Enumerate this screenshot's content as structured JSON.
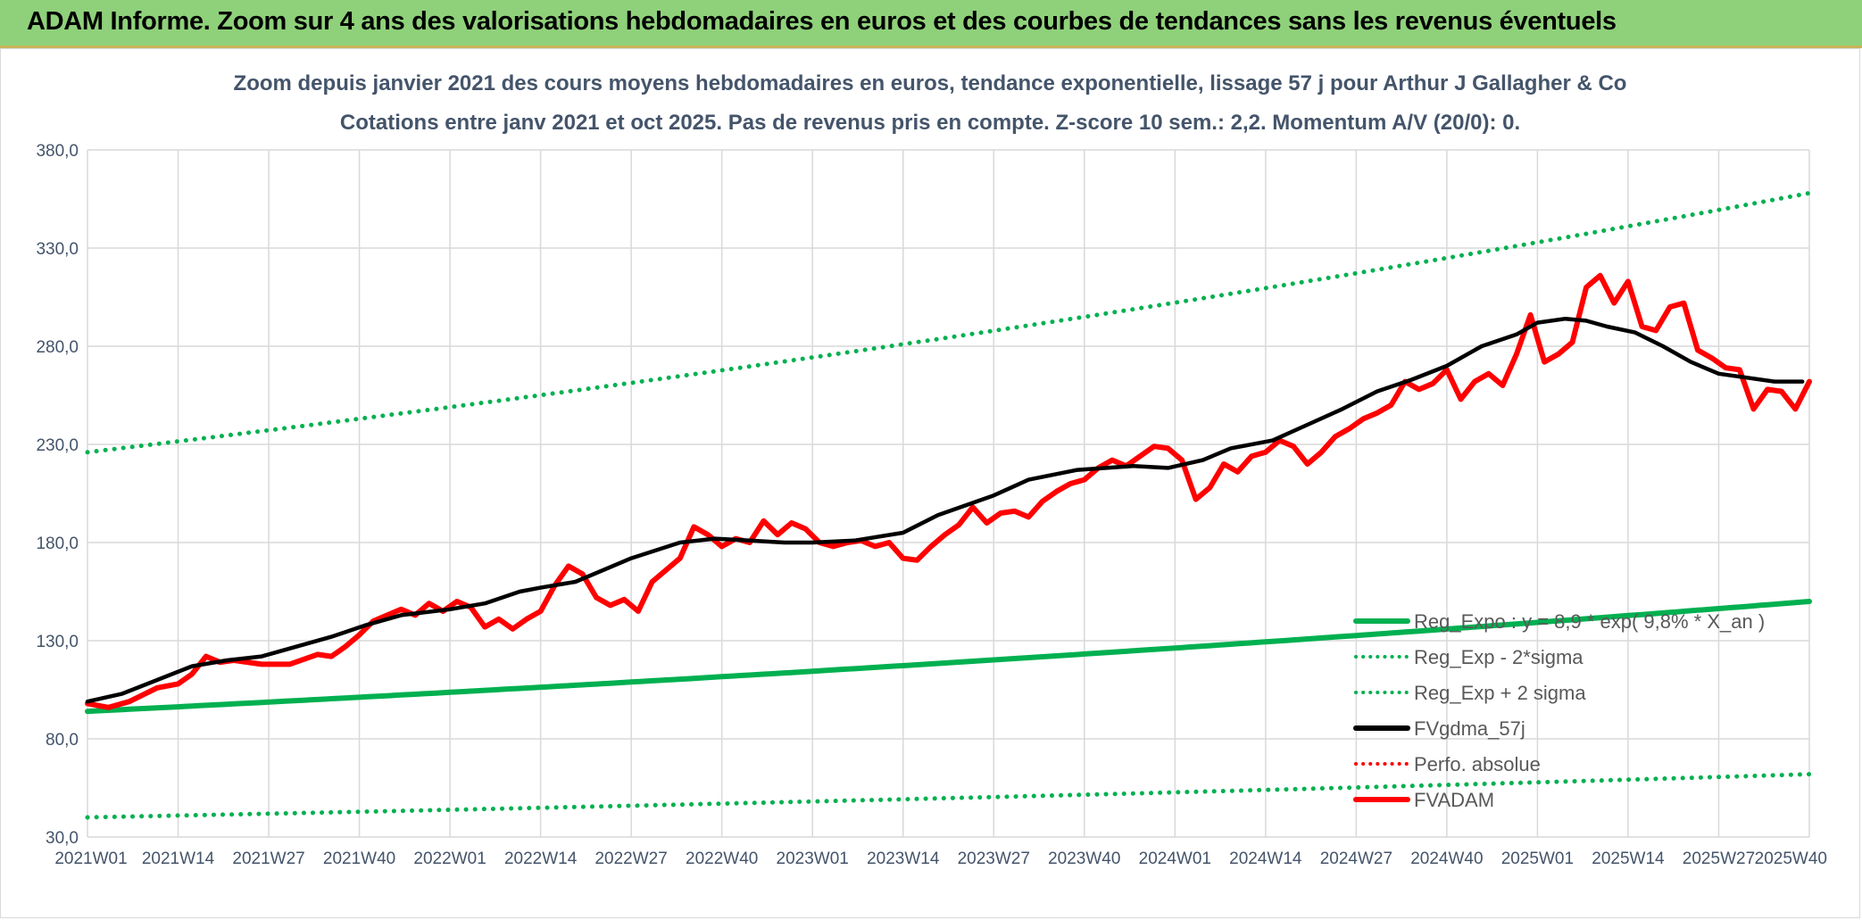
{
  "banner": {
    "title": "ADAM Informe. Zoom sur 4 ans des valorisations hebdomadaires en euros et des courbes de tendances sans les revenus éventuels"
  },
  "colors": {
    "banner_bg": "#8fd17a",
    "grid": "#d9d9d9",
    "reg_expo": "#00b050",
    "fvgdma": "#000000",
    "perfo": "#ff0000",
    "fvadam": "#ff0000",
    "title_text": "#44546a",
    "axis_text": "#44546a"
  },
  "chart_data": {
    "type": "line",
    "title": "Zoom depuis janvier 2021 des cours moyens hebdomadaires en euros, tendance exponentielle, lissage 57 j pour Arthur J Gallagher & Co",
    "subtitle": "Cotations entre janv 2021 et oct 2025. Pas de revenus pris en compte. Z-score 10 sem.: 2,2. Momentum A/V (20/0): 0.",
    "xlabel": "",
    "ylabel": "",
    "ylim": [
      30,
      380
    ],
    "yticks": [
      "30,0",
      "80,0",
      "130,0",
      "180,0",
      "230,0",
      "280,0",
      "330,0",
      "380,0"
    ],
    "xticks": [
      "2021W01",
      "2021W14",
      "2021W27",
      "2021W40",
      "2022W01",
      "2022W14",
      "2022W27",
      "2022W40",
      "2023W01",
      "2023W14",
      "2023W27",
      "2023W40",
      "2024W01",
      "2024W14",
      "2024W27",
      "2024W40",
      "2025W01",
      "2025W14",
      "2025W27",
      "2025W40"
    ],
    "x_range_weeks": [
      0,
      247
    ],
    "grid": true,
    "legend_position": "bottom-right",
    "legend": [
      {
        "name": "Reg_Expo : y = 8,9 * exp( 9,8% * X_an )",
        "style": "solid",
        "color": "#00b050"
      },
      {
        "name": "Reg_Exp - 2*sigma",
        "style": "dotted",
        "color": "#00b050"
      },
      {
        "name": "Reg_Exp + 2 sigma",
        "style": "dotted",
        "color": "#00b050"
      },
      {
        "name": "FVgdma_57j",
        "style": "solid",
        "color": "#000000"
      },
      {
        "name": "Perfo. absolue",
        "style": "dotted",
        "color": "#ff0000"
      },
      {
        "name": "FVADAM",
        "style": "solid",
        "color": "#ff0000"
      }
    ],
    "series": [
      {
        "name": "Reg_Expo",
        "x": [
          0,
          247
        ],
        "y": [
          94,
          150
        ],
        "curve": "exponential"
      },
      {
        "name": "Reg_Exp - 2*sigma",
        "x": [
          0,
          247
        ],
        "y": [
          40,
          62
        ],
        "curve": "exponential"
      },
      {
        "name": "Reg_Exp + 2 sigma",
        "x": [
          0,
          247
        ],
        "y": [
          226,
          358
        ],
        "curve": "exponential"
      },
      {
        "name": "FVgdma_57j",
        "x": [
          0,
          5,
          10,
          15,
          20,
          25,
          30,
          35,
          40,
          45,
          52,
          57,
          62,
          65,
          70,
          78,
          85,
          90,
          95,
          100,
          104,
          110,
          117,
          122,
          130,
          135,
          142,
          150,
          155,
          160,
          164,
          170,
          175,
          180,
          185,
          190,
          195,
          200,
          205,
          208,
          212,
          215,
          218,
          222,
          226,
          230,
          234,
          238,
          242,
          246
        ],
        "y": [
          99,
          103,
          110,
          117,
          120,
          122,
          127,
          132,
          138,
          143,
          146,
          149,
          155,
          157,
          160,
          172,
          180,
          182,
          181,
          180,
          180,
          181,
          185,
          194,
          204,
          212,
          217,
          219,
          218,
          222,
          228,
          232,
          240,
          248,
          257,
          263,
          270,
          280,
          286,
          292,
          294,
          293,
          290,
          287,
          280,
          272,
          266,
          264,
          262,
          262
        ]
      },
      {
        "name": "FVADAM",
        "x": [
          0,
          3,
          6,
          10,
          13,
          15,
          17,
          19,
          21,
          25,
          29,
          33,
          35,
          37,
          39,
          41,
          43,
          45,
          47,
          49,
          51,
          53,
          55,
          57,
          59,
          61,
          63,
          65,
          67,
          69,
          71,
          73,
          75,
          77,
          79,
          81,
          83,
          85,
          87,
          89,
          91,
          93,
          95,
          97,
          99,
          101,
          103,
          105,
          107,
          109,
          111,
          113,
          115,
          117,
          119,
          121,
          123,
          125,
          127,
          129,
          131,
          133,
          135,
          137,
          139,
          141,
          143,
          145,
          147,
          149,
          151,
          153,
          155,
          157,
          159,
          161,
          163,
          165,
          167,
          169,
          171,
          173,
          175,
          177,
          179,
          181,
          183,
          185,
          187,
          189,
          191,
          193,
          195,
          197,
          199,
          201,
          203,
          205,
          207,
          209,
          211,
          213,
          215,
          217,
          219,
          221,
          223,
          225,
          227,
          229,
          231,
          233,
          235,
          237,
          239,
          241,
          243,
          245,
          247
        ],
        "y": [
          98,
          96,
          99,
          106,
          108,
          113,
          122,
          119,
          120,
          118,
          118,
          123,
          122,
          127,
          133,
          140,
          143,
          146,
          143,
          149,
          145,
          150,
          147,
          137,
          141,
          136,
          141,
          145,
          158,
          168,
          164,
          152,
          148,
          151,
          145,
          160,
          166,
          172,
          188,
          184,
          178,
          182,
          180,
          191,
          184,
          190,
          187,
          180,
          178,
          180,
          181,
          178,
          180,
          172,
          171,
          178,
          184,
          189,
          198,
          190,
          195,
          196,
          193,
          201,
          206,
          210,
          212,
          218,
          222,
          219,
          224,
          229,
          228,
          222,
          202,
          208,
          220,
          216,
          224,
          226,
          232,
          229,
          220,
          226,
          234,
          238,
          243,
          246,
          250,
          262,
          258,
          261,
          268,
          253,
          262,
          266,
          260,
          276,
          296,
          272,
          276,
          282,
          310,
          316,
          302,
          313,
          290,
          288,
          300,
          302,
          278,
          274,
          269,
          268,
          248,
          258,
          257,
          248,
          262
        ]
      }
    ]
  }
}
